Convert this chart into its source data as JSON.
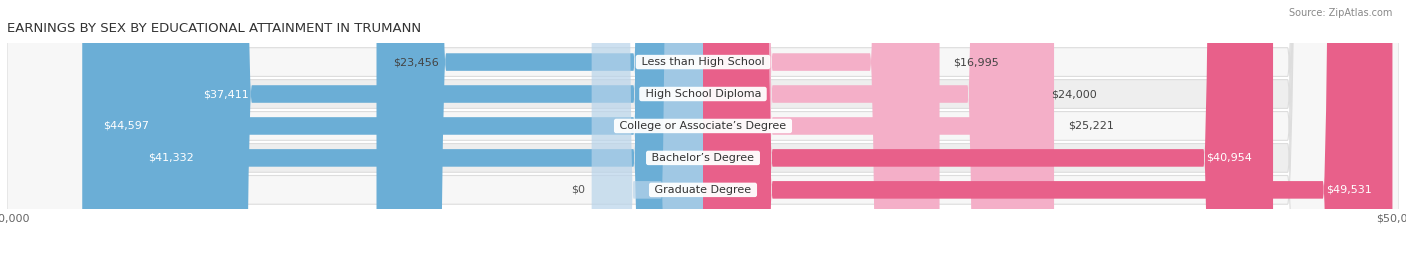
{
  "title": "EARNINGS BY SEX BY EDUCATIONAL ATTAINMENT IN TRUMANN",
  "source": "Source: ZipAtlas.com",
  "categories": [
    "Less than High School",
    "High School Diploma",
    "College or Associate’s Degree",
    "Bachelor’s Degree",
    "Graduate Degree"
  ],
  "male_values": [
    23456,
    37411,
    44597,
    41332,
    0
  ],
  "female_values": [
    16995,
    24000,
    25221,
    40954,
    49531
  ],
  "male_labels": [
    "$23,456",
    "$37,411",
    "$44,597",
    "$41,332",
    "$0"
  ],
  "female_labels": [
    "$16,995",
    "$24,000",
    "$25,221",
    "$40,954",
    "$49,531"
  ],
  "max_value": 50000,
  "male_color_dark": "#6baed6",
  "male_color_light": "#b8d4ea",
  "female_color_dark": "#e8608a",
  "female_color_light": "#f4afc8",
  "row_bg_light": "#f7f7f7",
  "row_bg_dark": "#eeeeee",
  "row_border": "#dddddd",
  "title_fontsize": 9.5,
  "label_fontsize": 8,
  "category_fontsize": 8,
  "axis_fontsize": 8,
  "legend_fontsize": 8,
  "source_fontsize": 7
}
